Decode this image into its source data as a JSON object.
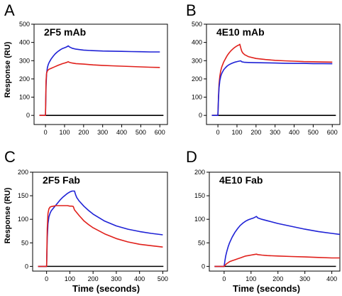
{
  "figure": {
    "panel_letters": [
      "A",
      "B",
      "C",
      "D"
    ],
    "ylabel_top": "Response (RU)",
    "ylabel_bottom": "Response (RU)",
    "xlabel_bottom_left": "Time (seconds)",
    "xlabel_bottom_right": "Time (seconds)"
  },
  "colors": {
    "series_blue": "#1f22d6",
    "series_red": "#e0201b",
    "baseline": "#000000"
  },
  "chart_data": [
    {
      "panel": "A",
      "type": "line",
      "title": "2F5 mAb",
      "xlim": [
        -60,
        640
      ],
      "ylim": [
        -50,
        500
      ],
      "xticks": [
        0,
        100,
        200,
        300,
        400,
        500,
        600
      ],
      "yticks": [
        0,
        100,
        200,
        300,
        400,
        500
      ],
      "baseline": 0,
      "series": [
        {
          "color": "#1f22d6",
          "x": [
            0,
            3,
            6,
            10,
            15,
            20,
            30,
            40,
            50,
            60,
            70,
            80,
            90,
            100,
            110,
            120,
            125,
            140,
            160,
            200,
            250,
            300,
            350,
            400,
            450,
            500,
            550,
            600
          ],
          "y": [
            0,
            160,
            230,
            262,
            280,
            292,
            310,
            324,
            336,
            346,
            354,
            361,
            367,
            371,
            375,
            381,
            376,
            368,
            363,
            358,
            355,
            353,
            352,
            351,
            350,
            349,
            348,
            348
          ]
        },
        {
          "color": "#e0201b",
          "x": [
            0,
            3,
            6,
            10,
            15,
            20,
            30,
            40,
            50,
            60,
            70,
            80,
            90,
            100,
            110,
            120,
            125,
            140,
            160,
            200,
            250,
            300,
            350,
            400,
            450,
            500,
            550,
            600
          ],
          "y": [
            0,
            190,
            232,
            244,
            250,
            254,
            258,
            263,
            267,
            272,
            276,
            280,
            284,
            287,
            290,
            294,
            291,
            287,
            284,
            281,
            277,
            274,
            272,
            270,
            268,
            266,
            264,
            263
          ]
        }
      ]
    },
    {
      "panel": "B",
      "type": "line",
      "title": "4E10 mAb",
      "xlim": [
        -60,
        640
      ],
      "ylim": [
        -50,
        500
      ],
      "xticks": [
        0,
        100,
        200,
        300,
        400,
        500,
        600
      ],
      "yticks": [
        0,
        100,
        200,
        300,
        400,
        500
      ],
      "baseline": 0,
      "series": [
        {
          "color": "#e0201b",
          "x": [
            0,
            3,
            6,
            10,
            15,
            20,
            30,
            40,
            50,
            60,
            70,
            80,
            90,
            100,
            110,
            115,
            120,
            125,
            130,
            140,
            160,
            200,
            250,
            300,
            350,
            400,
            450,
            500,
            550,
            600
          ],
          "y": [
            0,
            100,
            170,
            215,
            245,
            265,
            292,
            312,
            330,
            344,
            356,
            366,
            374,
            381,
            386,
            390,
            370,
            352,
            343,
            333,
            322,
            312,
            306,
            302,
            299,
            297,
            295,
            294,
            293,
            292
          ]
        },
        {
          "color": "#1f22d6",
          "x": [
            0,
            3,
            6,
            10,
            15,
            20,
            30,
            40,
            50,
            60,
            70,
            80,
            90,
            100,
            110,
            120,
            125,
            140,
            160,
            200,
            250,
            300,
            350,
            400,
            450,
            500,
            550,
            600
          ],
          "y": [
            0,
            90,
            150,
            190,
            214,
            230,
            250,
            262,
            272,
            279,
            284,
            288,
            292,
            295,
            297,
            299,
            294,
            291,
            290,
            289,
            288,
            287,
            286,
            285,
            285,
            284,
            284,
            283
          ]
        }
      ]
    },
    {
      "panel": "C",
      "type": "line",
      "title": "2F5 Fab",
      "xlabel": "Time (seconds)",
      "xlim": [
        -60,
        520
      ],
      "ylim": [
        -10,
        200
      ],
      "xticks": [
        0,
        100,
        200,
        300,
        400,
        500
      ],
      "yticks": [
        0,
        50,
        100,
        150,
        200
      ],
      "baseline": 0,
      "series": [
        {
          "color": "#1f22d6",
          "x": [
            0,
            3,
            6,
            10,
            15,
            20,
            30,
            40,
            50,
            60,
            70,
            80,
            90,
            100,
            110,
            120,
            125,
            130,
            140,
            160,
            180,
            200,
            250,
            300,
            350,
            400,
            450,
            500
          ],
          "y": [
            0,
            60,
            90,
            105,
            113,
            118,
            124,
            130,
            136,
            142,
            147,
            151,
            155,
            158,
            160,
            160,
            152,
            146,
            139,
            128,
            119,
            111,
            96,
            86,
            79,
            74,
            70,
            67
          ]
        },
        {
          "color": "#e0201b",
          "x": [
            0,
            3,
            6,
            10,
            15,
            20,
            30,
            40,
            50,
            60,
            70,
            80,
            90,
            100,
            110,
            115,
            120,
            125,
            140,
            160,
            180,
            200,
            250,
            300,
            350,
            400,
            450,
            500
          ],
          "y": [
            0,
            80,
            112,
            122,
            126,
            127,
            128,
            129,
            129,
            129,
            129,
            129,
            129,
            128,
            128,
            127,
            120,
            117,
            108,
            97,
            89,
            82,
            69,
            59,
            52,
            47,
            44,
            41
          ]
        }
      ]
    },
    {
      "panel": "D",
      "type": "line",
      "title": "4E10 Fab",
      "xlabel": "Time (seconds)",
      "xlim": [
        -55,
        430
      ],
      "ylim": [
        -10,
        200
      ],
      "xticks": [
        0,
        100,
        200,
        300,
        400
      ],
      "yticks": [
        0,
        50,
        100,
        150,
        200
      ],
      "baseline": 0,
      "series": [
        {
          "color": "#1f22d6",
          "x": [
            0,
            3,
            6,
            10,
            15,
            20,
            30,
            40,
            50,
            60,
            70,
            80,
            90,
            100,
            110,
            120,
            125,
            140,
            160,
            200,
            250,
            300,
            350,
            400,
            430
          ],
          "y": [
            0,
            12,
            22,
            32,
            42,
            50,
            62,
            72,
            80,
            87,
            92,
            96,
            99,
            101,
            103,
            106,
            103,
            100,
            97,
            91,
            85,
            79,
            74,
            70,
            68
          ]
        },
        {
          "color": "#e0201b",
          "x": [
            0,
            3,
            6,
            10,
            15,
            20,
            30,
            40,
            50,
            60,
            70,
            80,
            90,
            100,
            110,
            120,
            125,
            140,
            160,
            200,
            250,
            300,
            350,
            400,
            430
          ],
          "y": [
            0,
            2,
            4,
            6,
            8,
            10,
            12,
            14,
            16,
            18,
            20,
            22,
            23,
            24,
            25,
            26,
            25,
            24,
            23,
            22,
            21,
            20,
            19,
            18,
            18
          ]
        }
      ]
    }
  ]
}
